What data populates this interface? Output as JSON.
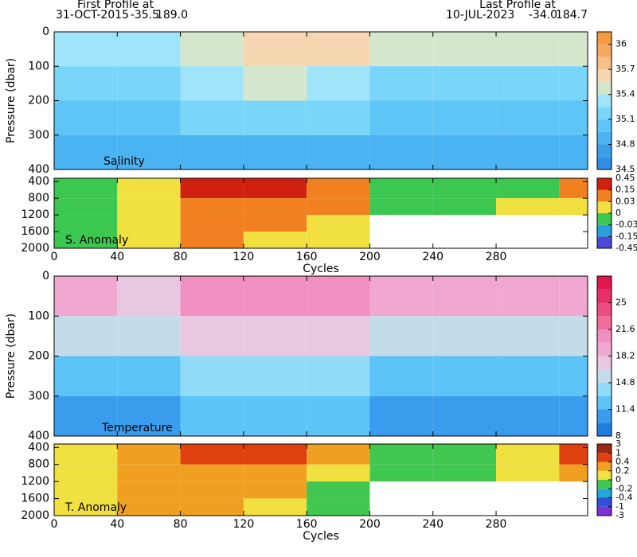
{
  "header": {
    "first_label": "First Profile at",
    "first_date": "31-OCT-2015",
    "first_lat": "-35.5",
    "first_lon": "189.0",
    "last_label": "Last Profile at",
    "last_date": "10-JUL-2023",
    "last_lat": "-34.0",
    "last_lon": "184.7"
  },
  "chart_data": [
    {
      "type": "heatmap",
      "label": "Salinity",
      "ylabel": "Pressure (dbar)",
      "xlim": [
        0,
        338
      ],
      "ylim": [
        0,
        400
      ],
      "y_inverted": true,
      "xticks": [
        0,
        40,
        80,
        120,
        160,
        200,
        240,
        280
      ],
      "yticks": [
        0,
        100,
        200,
        300,
        400
      ],
      "xbins": [
        0,
        40,
        80,
        120,
        160,
        200,
        240,
        280,
        320,
        338
      ],
      "ybins": [
        0,
        100,
        200,
        300,
        400
      ],
      "z": [
        [
          35.3,
          35.3,
          35.5,
          35.6,
          35.6,
          35.5,
          35.4,
          35.4,
          35.4
        ],
        [
          35.1,
          35.1,
          35.3,
          35.4,
          35.3,
          35.2,
          35.2,
          35.2,
          35.2
        ],
        [
          34.95,
          34.95,
          35.1,
          35.1,
          35.1,
          35.0,
          35.0,
          35.0,
          35.0
        ],
        [
          34.8,
          34.8,
          34.9,
          34.9,
          34.9,
          34.8,
          34.8,
          34.8,
          34.8
        ]
      ],
      "colorbar": {
        "levels": [
          34.5,
          34.65,
          34.8,
          34.95,
          35.1,
          35.25,
          35.4,
          35.55,
          35.7,
          35.85,
          36.0,
          36.15
        ],
        "colors": [
          "#2f8de4",
          "#3aa0ec",
          "#4ab4f2",
          "#5ec6f6",
          "#7ad6f8",
          "#9fe4f8",
          "#d4e6cc",
          "#f5d6b0",
          "#f5c08a",
          "#f5aa62",
          "#f59a40"
        ],
        "ticks": [
          34.5,
          34.8,
          35.1,
          35.4,
          35.7,
          36
        ]
      }
    },
    {
      "type": "heatmap",
      "label": "S. Anomaly",
      "xlabel": "Cycles",
      "xlim": [
        0,
        338
      ],
      "ylim": [
        320,
        2000
      ],
      "y_inverted": true,
      "xticks": [
        0,
        40,
        80,
        120,
        160,
        200,
        240,
        280
      ],
      "yticks": [
        400,
        800,
        1200,
        1600,
        2000
      ],
      "xbins": [
        0,
        40,
        80,
        120,
        160,
        200,
        240,
        280,
        320,
        338
      ],
      "ybins": [
        320,
        800,
        1200,
        1600,
        2000
      ],
      "z": [
        [
          -0.02,
          0.01,
          0.2,
          0.2,
          0.1,
          -0.02,
          -0.02,
          -0.01,
          0.05
        ],
        [
          -0.02,
          0.01,
          0.1,
          0.1,
          0.05,
          -0.01,
          -0.01,
          0.02,
          0.0
        ],
        [
          -0.01,
          0.01,
          0.05,
          0.05,
          0.02,
          null,
          null,
          null,
          null
        ],
        [
          -0.01,
          0.01,
          0.05,
          0.02,
          0.01,
          null,
          null,
          null,
          null
        ]
      ],
      "colorbar": {
        "levels": [
          -0.45,
          -0.15,
          -0.03,
          0,
          0.03,
          0.15,
          0.45
        ],
        "colors": [
          "#4a4ad8",
          "#2aa0d8",
          "#3cc850",
          "#f0e040",
          "#f08020",
          "#d02010"
        ],
        "ticks": [
          0.45,
          0.15,
          0.03,
          0,
          -0.03,
          -0.15,
          -0.45
        ]
      }
    },
    {
      "type": "heatmap",
      "label": "Temperature",
      "ylabel": "Pressure (dbar)",
      "xlim": [
        0,
        338
      ],
      "ylim": [
        0,
        400
      ],
      "y_inverted": true,
      "xticks": [
        0,
        40,
        80,
        120,
        160,
        200,
        240,
        280
      ],
      "yticks": [
        0,
        100,
        200,
        300,
        400
      ],
      "xbins": [
        0,
        40,
        80,
        120,
        160,
        200,
        240,
        280,
        320,
        338
      ],
      "ybins": [
        0,
        100,
        200,
        300,
        400
      ],
      "z": [
        [
          19,
          18,
          21,
          20,
          20,
          19,
          19,
          19,
          19
        ],
        [
          15,
          15,
          17,
          17,
          16.5,
          16,
          16,
          16,
          16
        ],
        [
          13,
          12.5,
          14,
          14,
          13.5,
          13,
          13,
          13,
          13
        ],
        [
          11,
          10.5,
          12,
          12,
          11.5,
          11,
          11,
          11,
          11
        ]
      ],
      "colorbar": {
        "levels": [
          8,
          9.7,
          11.4,
          13.1,
          14.8,
          16.5,
          18.2,
          19.9,
          21.6,
          23.3,
          25,
          26.7,
          28.4
        ],
        "colors": [
          "#1e7fe0",
          "#3a9cec",
          "#5cc4f6",
          "#90dcf8",
          "#c4dcea",
          "#e8c8e0",
          "#f0a8d0",
          "#f090c0",
          "#f06c9c",
          "#ec4c80",
          "#e83068",
          "#e01850"
        ],
        "ticks": [
          25,
          21.6,
          18.2,
          14.8,
          11.4,
          8
        ]
      }
    },
    {
      "type": "heatmap",
      "label": "T. Anomaly",
      "xlabel": "Cycles",
      "xlim": [
        0,
        338
      ],
      "ylim": [
        320,
        2000
      ],
      "y_inverted": true,
      "xticks": [
        0,
        40,
        80,
        120,
        160,
        200,
        240,
        280
      ],
      "yticks": [
        400,
        800,
        1200,
        1600,
        2000
      ],
      "xbins": [
        0,
        40,
        80,
        120,
        160,
        200,
        240,
        280,
        320,
        338
      ],
      "ybins": [
        320,
        800,
        1200,
        1600,
        2000
      ],
      "z": [
        [
          0.1,
          0.3,
          0.6,
          0.8,
          0.2,
          -0.1,
          -0.1,
          0,
          0.5
        ],
        [
          0.1,
          0.2,
          0.3,
          0.3,
          0.1,
          -0.1,
          -0.1,
          0,
          0.3
        ],
        [
          0.1,
          0.2,
          0.3,
          0.2,
          -0.1,
          null,
          null,
          null,
          null
        ],
        [
          0.1,
          0.3,
          0.3,
          0.1,
          -0.1,
          null,
          null,
          null,
          null
        ]
      ],
      "colorbar": {
        "levels": [
          -3,
          -1,
          -0.4,
          -0.2,
          0,
          0.2,
          0.4,
          1,
          3
        ],
        "colors": [
          "#8030d0",
          "#3050d8",
          "#20a8d8",
          "#40c850",
          "#f0e040",
          "#f0a020",
          "#e04010",
          "#a02818"
        ],
        "ticks": [
          3,
          1,
          0.4,
          0.2,
          0,
          -0.2,
          -0.4,
          -1,
          -3
        ]
      }
    }
  ]
}
